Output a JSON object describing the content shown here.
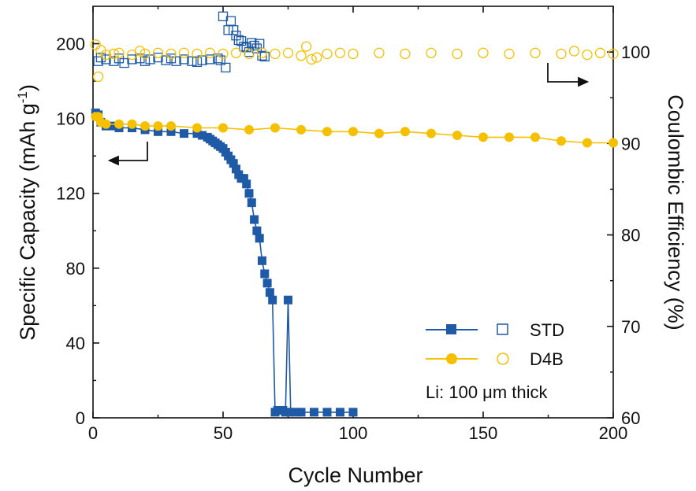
{
  "chart_data": {
    "type": "scatter",
    "xlabel": "Cycle Number",
    "ylabel_left": "Specific Capacity (mAh g-1)",
    "ylabel_left_main": "Specific Capacity (mAh g",
    "ylabel_left_sup": "-1",
    "ylabel_left_close": ")",
    "ylabel_right": "Coulombic Efficiency (%)",
    "xlim": [
      0,
      200
    ],
    "ylim_left": [
      0,
      220
    ],
    "ylim_right": [
      60,
      105
    ],
    "x_ticks": [
      "0",
      "50",
      "100",
      "150",
      "200"
    ],
    "y_left_ticks": [
      "0",
      "40",
      "80",
      "120",
      "160",
      "200"
    ],
    "y_right_ticks": [
      "60",
      "70",
      "80",
      "90",
      "100"
    ],
    "annotation": "Li: 100 μm thick",
    "legend_position": "bottom-right",
    "colors": {
      "STD": "#1f5aa6",
      "D4B": "#f5c000"
    },
    "series": [
      {
        "name": "STD",
        "kind": "capacity",
        "axis": "left",
        "marker": "filled-square",
        "points": [
          [
            1,
            163
          ],
          [
            2,
            162
          ],
          [
            3,
            158
          ],
          [
            5,
            156
          ],
          [
            8,
            156
          ],
          [
            10,
            155
          ],
          [
            15,
            155
          ],
          [
            20,
            154
          ],
          [
            25,
            153
          ],
          [
            30,
            153
          ],
          [
            35,
            152
          ],
          [
            40,
            152
          ],
          [
            42,
            151
          ],
          [
            44,
            150
          ],
          [
            45,
            149
          ],
          [
            46,
            148
          ],
          [
            47,
            147
          ],
          [
            48,
            146
          ],
          [
            49,
            145
          ],
          [
            50,
            144
          ],
          [
            51,
            142
          ],
          [
            52,
            140
          ],
          [
            53,
            138
          ],
          [
            54,
            136
          ],
          [
            55,
            133
          ],
          [
            56,
            130
          ],
          [
            57,
            128
          ],
          [
            58,
            128
          ],
          [
            59,
            125
          ],
          [
            60,
            120
          ],
          [
            61,
            115
          ],
          [
            62,
            106
          ],
          [
            63,
            100
          ],
          [
            64,
            96
          ],
          [
            65,
            84
          ],
          [
            66,
            77
          ],
          [
            67,
            72
          ],
          [
            68,
            67
          ],
          [
            69,
            63
          ],
          [
            70,
            3
          ],
          [
            71,
            4
          ],
          [
            72,
            4
          ],
          [
            73,
            4
          ],
          [
            74,
            3
          ],
          [
            75,
            63
          ],
          [
            76,
            3
          ],
          [
            78,
            3
          ],
          [
            80,
            3
          ],
          [
            85,
            3
          ],
          [
            90,
            3
          ],
          [
            95,
            3
          ],
          [
            100,
            3
          ]
        ]
      },
      {
        "name": "STD",
        "kind": "efficiency",
        "axis": "right",
        "marker": "open-square",
        "points": [
          [
            2,
            99
          ],
          [
            3,
            99.4
          ],
          [
            5,
            99.2
          ],
          [
            8,
            99.0
          ],
          [
            10,
            99.3
          ],
          [
            12,
            98.8
          ],
          [
            15,
            99.2
          ],
          [
            18,
            99.3
          ],
          [
            20,
            99.0
          ],
          [
            22,
            99.2
          ],
          [
            25,
            99.4
          ],
          [
            28,
            99.1
          ],
          [
            30,
            99.3
          ],
          [
            32,
            99.0
          ],
          [
            35,
            99.2
          ],
          [
            38,
            99.0
          ],
          [
            40,
            98.9
          ],
          [
            42,
            99.1
          ],
          [
            45,
            99.2
          ],
          [
            48,
            99.3
          ],
          [
            49,
            99.1
          ],
          [
            50,
            103.9
          ],
          [
            51,
            98.3
          ],
          [
            52,
            102.4
          ],
          [
            53,
            103.4
          ],
          [
            54,
            102.4
          ],
          [
            55,
            101.8
          ],
          [
            56,
            101.3
          ],
          [
            57,
            101.2
          ],
          [
            58,
            100.6
          ],
          [
            59,
            100.5
          ],
          [
            60,
            100.0
          ],
          [
            61,
            101.0
          ],
          [
            62,
            100.7
          ],
          [
            63,
            100.4
          ],
          [
            64,
            100.9
          ],
          [
            65,
            99.6
          ],
          [
            66,
            99.5
          ]
        ]
      },
      {
        "name": "D4B",
        "kind": "capacity",
        "axis": "left",
        "marker": "filled-circle",
        "points": [
          [
            1,
            161
          ],
          [
            2,
            161
          ],
          [
            3,
            158
          ],
          [
            5,
            157
          ],
          [
            10,
            157
          ],
          [
            15,
            157
          ],
          [
            20,
            156
          ],
          [
            25,
            156
          ],
          [
            30,
            156
          ],
          [
            40,
            155
          ],
          [
            50,
            155
          ],
          [
            60,
            154
          ],
          [
            70,
            155
          ],
          [
            80,
            154
          ],
          [
            90,
            153
          ],
          [
            100,
            153
          ],
          [
            110,
            152
          ],
          [
            120,
            153
          ],
          [
            130,
            152
          ],
          [
            140,
            151
          ],
          [
            150,
            150
          ],
          [
            160,
            150
          ],
          [
            170,
            150
          ],
          [
            180,
            148
          ],
          [
            190,
            147
          ],
          [
            200,
            147
          ]
        ]
      },
      {
        "name": "D4B",
        "kind": "efficiency",
        "axis": "right",
        "marker": "open-circle",
        "points": [
          [
            1,
            100.8
          ],
          [
            2,
            97.3
          ],
          [
            3,
            100.2
          ],
          [
            5,
            99.7
          ],
          [
            8,
            99.8
          ],
          [
            10,
            99.9
          ],
          [
            15,
            99.7
          ],
          [
            18,
            100.1
          ],
          [
            20,
            99.8
          ],
          [
            25,
            99.9
          ],
          [
            30,
            99.8
          ],
          [
            35,
            99.9
          ],
          [
            40,
            99.8
          ],
          [
            45,
            99.9
          ],
          [
            50,
            99.8
          ],
          [
            55,
            99.9
          ],
          [
            60,
            99.8
          ],
          [
            65,
            99.9
          ],
          [
            70,
            99.8
          ],
          [
            75,
            99.9
          ],
          [
            80,
            99.6
          ],
          [
            82,
            100.6
          ],
          [
            84,
            99.2
          ],
          [
            86,
            99.4
          ],
          [
            90,
            99.8
          ],
          [
            95,
            99.9
          ],
          [
            100,
            99.8
          ],
          [
            110,
            99.9
          ],
          [
            120,
            99.8
          ],
          [
            130,
            99.9
          ],
          [
            140,
            99.8
          ],
          [
            150,
            99.9
          ],
          [
            160,
            99.8
          ],
          [
            170,
            99.9
          ],
          [
            180,
            99.8
          ],
          [
            185,
            100.1
          ],
          [
            190,
            99.7
          ],
          [
            195,
            99.9
          ],
          [
            200,
            99.8
          ]
        ]
      }
    ]
  },
  "legend": {
    "std": "STD",
    "d4b": "D4B"
  }
}
